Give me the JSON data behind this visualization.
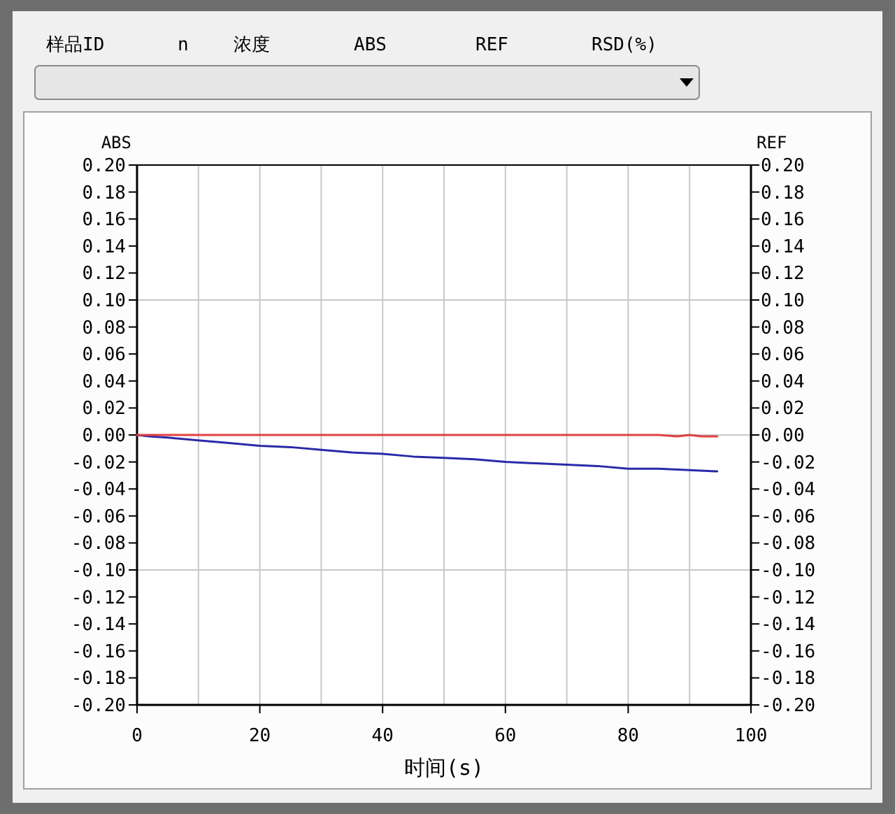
{
  "chart_data": {
    "type": "line",
    "xlabel": "时间(s)",
    "ylabel": "ABS",
    "y2label": "REF",
    "annotations": [
      "样品ID",
      "n",
      "浓度",
      "ABS",
      "REF",
      "RSD(%)"
    ],
    "xlim": [
      0,
      100
    ],
    "xticks": [
      0,
      {
        "value": 10,
        "label": null
      },
      20,
      {
        "value": 30,
        "label": null
      },
      40,
      {
        "value": 50,
        "label": null
      },
      60,
      {
        "value": 70,
        "label": null
      },
      80,
      {
        "value": 90,
        "label": null
      },
      100
    ],
    "ylim": [
      -0.2,
      0.2
    ],
    "yticks": [
      {
        "value": 0.2,
        "label": "0.20"
      },
      {
        "value": 0.18,
        "label": "0.18"
      },
      {
        "value": 0.16,
        "label": "0.16"
      },
      {
        "value": 0.14,
        "label": "0.14"
      },
      {
        "value": 0.12,
        "label": "0.12"
      },
      {
        "value": 0.1,
        "label": "0.10"
      },
      {
        "value": 0.08,
        "label": "0.08"
      },
      {
        "value": 0.06,
        "label": "0.06"
      },
      {
        "value": 0.04,
        "label": "0.04"
      },
      {
        "value": 0.02,
        "label": "0.02"
      },
      {
        "value": 0,
        "label": "0.00"
      },
      {
        "value": -0.02,
        "label": "-0.02"
      },
      {
        "value": -0.04,
        "label": "-0.04"
      },
      {
        "value": -0.06,
        "label": "-0.06"
      },
      {
        "value": -0.08,
        "label": "-0.08"
      },
      {
        "value": -0.1,
        "label": "-0.10"
      },
      {
        "value": -0.12,
        "label": "-0.12"
      },
      {
        "value": -0.14,
        "label": "-0.14"
      },
      {
        "value": -0.16,
        "label": "-0.16"
      },
      {
        "value": -0.18,
        "label": "-0.18"
      },
      {
        "value": -0.2,
        "label": "-0.20"
      }
    ],
    "y2lim": [
      -0.2,
      0.2
    ],
    "y2ticks": [
      {
        "value": 0.2,
        "label": "0.20"
      },
      {
        "value": 0.18,
        "label": "0.18"
      },
      {
        "value": 0.16,
        "label": "0.16"
      },
      {
        "value": 0.14,
        "label": "0.14"
      },
      {
        "value": 0.12,
        "label": "0.12"
      },
      {
        "value": 0.1,
        "label": "0.10"
      },
      {
        "value": 0.08,
        "label": "0.08"
      },
      {
        "value": 0.06,
        "label": "0.06"
      },
      {
        "value": 0.04,
        "label": "0.04"
      },
      {
        "value": 0.02,
        "label": "0.02"
      },
      {
        "value": 0,
        "label": "0.00"
      },
      {
        "value": -0.02,
        "label": "-0.02"
      },
      {
        "value": -0.04,
        "label": "-0.04"
      },
      {
        "value": -0.06,
        "label": "-0.06"
      },
      {
        "value": -0.08,
        "label": "-0.08"
      },
      {
        "value": -0.1,
        "label": "-0.10"
      },
      {
        "value": -0.12,
        "label": "-0.12"
      },
      {
        "value": -0.14,
        "label": "-0.14"
      },
      {
        "value": -0.16,
        "label": "-0.16"
      },
      {
        "value": -0.18,
        "label": "-0.18"
      },
      {
        "value": -0.2,
        "label": "-0.20"
      }
    ],
    "grid": "x",
    "ref_lines": [
      {
        "axis": "y",
        "value": 0.1,
        "color": "#c8c8c8"
      },
      {
        "axis": "y",
        "value": 0,
        "color": "#c8c8c8"
      },
      {
        "axis": "y",
        "value": -0.1,
        "color": "#c8c8c8"
      }
    ],
    "series": [
      {
        "color": "#2a2aa8",
        "x": [
          0,
          2,
          5,
          10,
          15,
          20,
          25,
          30,
          35,
          40,
          45,
          50,
          55,
          60,
          65,
          70,
          75,
          80,
          85,
          90,
          94.5
        ],
        "values": [
          0,
          -0.001,
          -0.002,
          -0.004,
          -0.006,
          -0.008,
          -0.009,
          -0.011,
          -0.013,
          -0.014,
          -0.016,
          -0.017,
          -0.018,
          -0.02,
          -0.021,
          -0.022,
          -0.023,
          -0.025,
          -0.025,
          -0.026,
          -0.027
        ]
      },
      {
        "color": "#e04040",
        "x": [
          0,
          10,
          20,
          30,
          40,
          50,
          60,
          70,
          80,
          85,
          88,
          90,
          92,
          94.5
        ],
        "values": [
          0,
          0,
          0,
          0,
          0,
          0,
          0,
          0,
          0,
          0,
          -0.001,
          0,
          -0.001,
          -0.001
        ]
      }
    ]
  }
}
